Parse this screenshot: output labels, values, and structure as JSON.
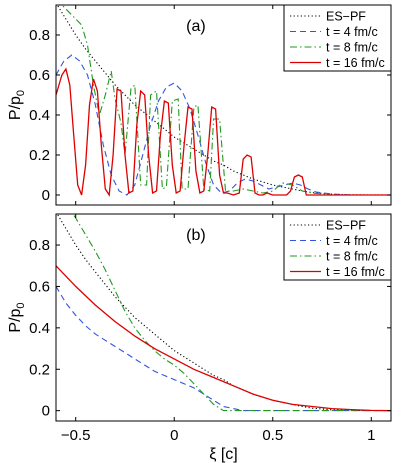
{
  "chart_data": [
    {
      "type": "line",
      "panel_label": "(a)",
      "xlim": [
        -0.6,
        1.1
      ],
      "ylim": [
        -0.05,
        0.95
      ],
      "ylabel": "P/p0",
      "xlabel": "",
      "y_ticks": [
        "0",
        "0.2",
        "0.4",
        "0.6",
        "0.8"
      ],
      "x_ticks": [
        "",
        "",
        "",
        "",
        "",
        ""
      ],
      "legend_position": "top-right",
      "series": [
        {
          "name": "ES−PF",
          "style": "dotted",
          "color": "#000000",
          "x": [
            -0.6,
            -0.55,
            -0.5,
            -0.45,
            -0.4,
            -0.35,
            -0.3,
            -0.25,
            -0.2,
            -0.15,
            -0.1,
            -0.05,
            0,
            0.05,
            0.1,
            0.15,
            0.2,
            0.25,
            0.3,
            0.35,
            0.4,
            0.45,
            0.5,
            0.55,
            0.6,
            0.65,
            0.7,
            0.8,
            0.9,
            1.1
          ],
          "y": [
            0.96,
            0.88,
            0.8,
            0.73,
            0.67,
            0.61,
            0.55,
            0.5,
            0.45,
            0.41,
            0.37,
            0.33,
            0.29,
            0.26,
            0.23,
            0.2,
            0.17,
            0.15,
            0.12,
            0.1,
            0.08,
            0.065,
            0.05,
            0.04,
            0.03,
            0.02,
            0.012,
            0.004,
            0.001,
            0.0
          ]
        },
        {
          "name": "t = 4 fm/c",
          "style": "dashed",
          "color": "#3355dd",
          "x": [
            -0.6,
            -0.56,
            -0.52,
            -0.48,
            -0.44,
            -0.4,
            -0.36,
            -0.32,
            -0.28,
            -0.24,
            -0.2,
            -0.16,
            -0.12,
            -0.08,
            -0.04,
            0,
            0.04,
            0.08,
            0.12,
            0.16,
            0.2,
            0.24,
            0.28,
            0.32,
            0.36,
            0.4,
            0.44,
            0.48,
            0.52,
            0.56,
            0.6,
            0.64,
            0.68,
            0.72,
            0.8,
            0.9,
            1.0,
            1.1
          ],
          "y": [
            0.6,
            0.67,
            0.7,
            0.67,
            0.6,
            0.45,
            0.25,
            0.1,
            0.02,
            0.0,
            0.05,
            0.2,
            0.35,
            0.47,
            0.54,
            0.56,
            0.52,
            0.43,
            0.3,
            0.16,
            0.05,
            0.01,
            0.02,
            0.06,
            0.08,
            0.07,
            0.05,
            0.03,
            0.04,
            0.05,
            0.06,
            0.05,
            0.03,
            0.015,
            0.005,
            0.0,
            0.0,
            0.0
          ]
        },
        {
          "name": "t = 8 fm/c",
          "style": "dashdot",
          "color": "#229922",
          "x": [
            -0.6,
            -0.55,
            -0.5,
            -0.47,
            -0.44,
            -0.41,
            -0.38,
            -0.35,
            -0.32,
            -0.3,
            -0.27,
            -0.25,
            -0.22,
            -0.2,
            -0.17,
            -0.14,
            -0.12,
            -0.09,
            -0.06,
            -0.04,
            -0.01,
            0.02,
            0.04,
            0.07,
            0.1,
            0.12,
            0.15,
            0.18,
            0.2,
            0.23,
            0.26,
            0.3,
            0.35,
            0.4,
            0.45,
            0.5,
            0.55,
            0.6,
            0.65,
            0.7,
            0.8,
            0.9,
            1.0,
            1.1
          ],
          "y": [
            0.98,
            0.93,
            0.88,
            0.85,
            0.75,
            0.55,
            0.4,
            0.5,
            0.62,
            0.48,
            0.36,
            0.2,
            0.53,
            0.55,
            0.05,
            0.05,
            0.5,
            0.52,
            0.03,
            0.04,
            0.47,
            0.48,
            0.03,
            0.03,
            0.44,
            0.45,
            0.03,
            0.02,
            0.38,
            0.38,
            0.02,
            0.02,
            0.03,
            0.02,
            0.01,
            0.02,
            0.06,
            0.05,
            0.02,
            0.01,
            0.0,
            0.0,
            0.0,
            0.0
          ]
        },
        {
          "name": "t = 16 fm/c",
          "style": "solid",
          "color": "#dd0000",
          "x": [
            -0.6,
            -0.57,
            -0.55,
            -0.53,
            -0.51,
            -0.49,
            -0.47,
            -0.45,
            -0.43,
            -0.41,
            -0.39,
            -0.37,
            -0.35,
            -0.33,
            -0.31,
            -0.29,
            -0.27,
            -0.25,
            -0.23,
            -0.21,
            -0.19,
            -0.17,
            -0.15,
            -0.13,
            -0.11,
            -0.09,
            -0.07,
            -0.05,
            -0.03,
            -0.01,
            0.01,
            0.03,
            0.05,
            0.07,
            0.09,
            0.11,
            0.13,
            0.15,
            0.17,
            0.19,
            0.21,
            0.23,
            0.25,
            0.27,
            0.3,
            0.33,
            0.35,
            0.37,
            0.39,
            0.41,
            0.43,
            0.45,
            0.47,
            0.5,
            0.53,
            0.55,
            0.57,
            0.59,
            0.61,
            0.63,
            0.65,
            0.67,
            0.7,
            0.8,
            0.9,
            1.0,
            1.1
          ],
          "y": [
            0.5,
            0.6,
            0.63,
            0.55,
            0.3,
            0.05,
            0.0,
            0.15,
            0.45,
            0.58,
            0.52,
            0.25,
            0.03,
            0.0,
            0.2,
            0.53,
            0.52,
            0.2,
            0.01,
            0.02,
            0.35,
            0.52,
            0.5,
            0.2,
            0.01,
            0.02,
            0.3,
            0.47,
            0.46,
            0.15,
            0.01,
            0.02,
            0.25,
            0.44,
            0.43,
            0.12,
            0.01,
            0.02,
            0.2,
            0.44,
            0.43,
            0.1,
            0.01,
            0.01,
            0.0,
            0.01,
            0.18,
            0.2,
            0.19,
            0.01,
            0.0,
            0.0,
            0.01,
            0.0,
            0.0,
            0.0,
            0.0,
            0.02,
            0.09,
            0.1,
            0.09,
            0.0,
            0.0,
            0.0,
            0.0,
            0.0,
            0.0
          ]
        }
      ]
    },
    {
      "type": "line",
      "panel_label": "(b)",
      "xlim": [
        -0.6,
        1.1
      ],
      "ylim": [
        -0.05,
        0.95
      ],
      "ylabel": "P/p0",
      "xlabel": "ξ [c]",
      "y_ticks": [
        "0",
        "0.2",
        "0.4",
        "0.6",
        "0.8"
      ],
      "x_ticks": [
        "−0.5",
        "0",
        "0.5",
        "1"
      ],
      "x_tick_values": [
        -0.5,
        0,
        0.5,
        1
      ],
      "legend_position": "top-right",
      "series": [
        {
          "name": "ES−PF",
          "style": "dotted",
          "color": "#000000",
          "x": [
            -0.6,
            -0.55,
            -0.5,
            -0.45,
            -0.4,
            -0.35,
            -0.3,
            -0.25,
            -0.2,
            -0.15,
            -0.1,
            -0.05,
            0,
            0.05,
            0.1,
            0.15,
            0.2,
            0.25,
            0.3,
            0.35,
            0.4,
            0.45,
            0.5,
            0.55,
            0.6,
            0.65,
            0.7,
            0.8,
            0.9,
            1.1
          ],
          "y": [
            0.96,
            0.88,
            0.8,
            0.73,
            0.67,
            0.61,
            0.55,
            0.5,
            0.45,
            0.41,
            0.37,
            0.33,
            0.29,
            0.26,
            0.23,
            0.2,
            0.17,
            0.15,
            0.12,
            0.1,
            0.08,
            0.065,
            0.05,
            0.04,
            0.03,
            0.02,
            0.012,
            0.004,
            0.001,
            0.0
          ]
        },
        {
          "name": "t = 4 fm/c",
          "style": "dashed",
          "color": "#3355dd",
          "x": [
            -0.6,
            -0.55,
            -0.5,
            -0.45,
            -0.4,
            -0.35,
            -0.3,
            -0.25,
            -0.2,
            -0.15,
            -0.1,
            -0.05,
            0,
            0.05,
            0.1,
            0.15,
            0.2,
            0.25,
            0.3,
            0.35,
            0.4,
            0.45,
            0.5,
            0.55,
            0.6,
            0.7,
            0.8,
            0.9,
            1.1
          ],
          "y": [
            0.6,
            0.52,
            0.46,
            0.41,
            0.37,
            0.34,
            0.31,
            0.28,
            0.25,
            0.22,
            0.19,
            0.17,
            0.15,
            0.13,
            0.11,
            0.08,
            0.05,
            0.02,
            0.01,
            0.0,
            0.0,
            0.0,
            0.0,
            0.0,
            0.0,
            0.0,
            0.0,
            0.0,
            0.0
          ]
        },
        {
          "name": "t = 8 fm/c",
          "style": "dashdot",
          "color": "#229922",
          "x": [
            -0.55,
            -0.5,
            -0.45,
            -0.4,
            -0.35,
            -0.3,
            -0.25,
            -0.2,
            -0.15,
            -0.1,
            -0.05,
            0,
            0.05,
            0.1,
            0.15,
            0.2,
            0.25,
            0.3,
            0.35,
            0.4,
            0.5,
            0.6,
            0.7,
            0.8,
            0.9,
            1.1
          ],
          "y": [
            1.0,
            0.93,
            0.85,
            0.77,
            0.68,
            0.58,
            0.48,
            0.4,
            0.34,
            0.29,
            0.25,
            0.22,
            0.18,
            0.13,
            0.08,
            0.03,
            0.0,
            0.0,
            0.0,
            0.0,
            0.0,
            0.0,
            0.0,
            0.0,
            0.0,
            0.0
          ]
        },
        {
          "name": "t = 16 fm/c",
          "style": "solid",
          "color": "#dd0000",
          "x": [
            -0.6,
            -0.5,
            -0.4,
            -0.3,
            -0.2,
            -0.1,
            0,
            0.1,
            0.2,
            0.3,
            0.4,
            0.5,
            0.6,
            0.7,
            0.8,
            0.9,
            1.0,
            1.1
          ],
          "y": [
            0.7,
            0.6,
            0.51,
            0.43,
            0.36,
            0.3,
            0.25,
            0.2,
            0.16,
            0.12,
            0.08,
            0.05,
            0.03,
            0.02,
            0.01,
            0.005,
            0.001,
            0.0
          ]
        }
      ]
    }
  ]
}
